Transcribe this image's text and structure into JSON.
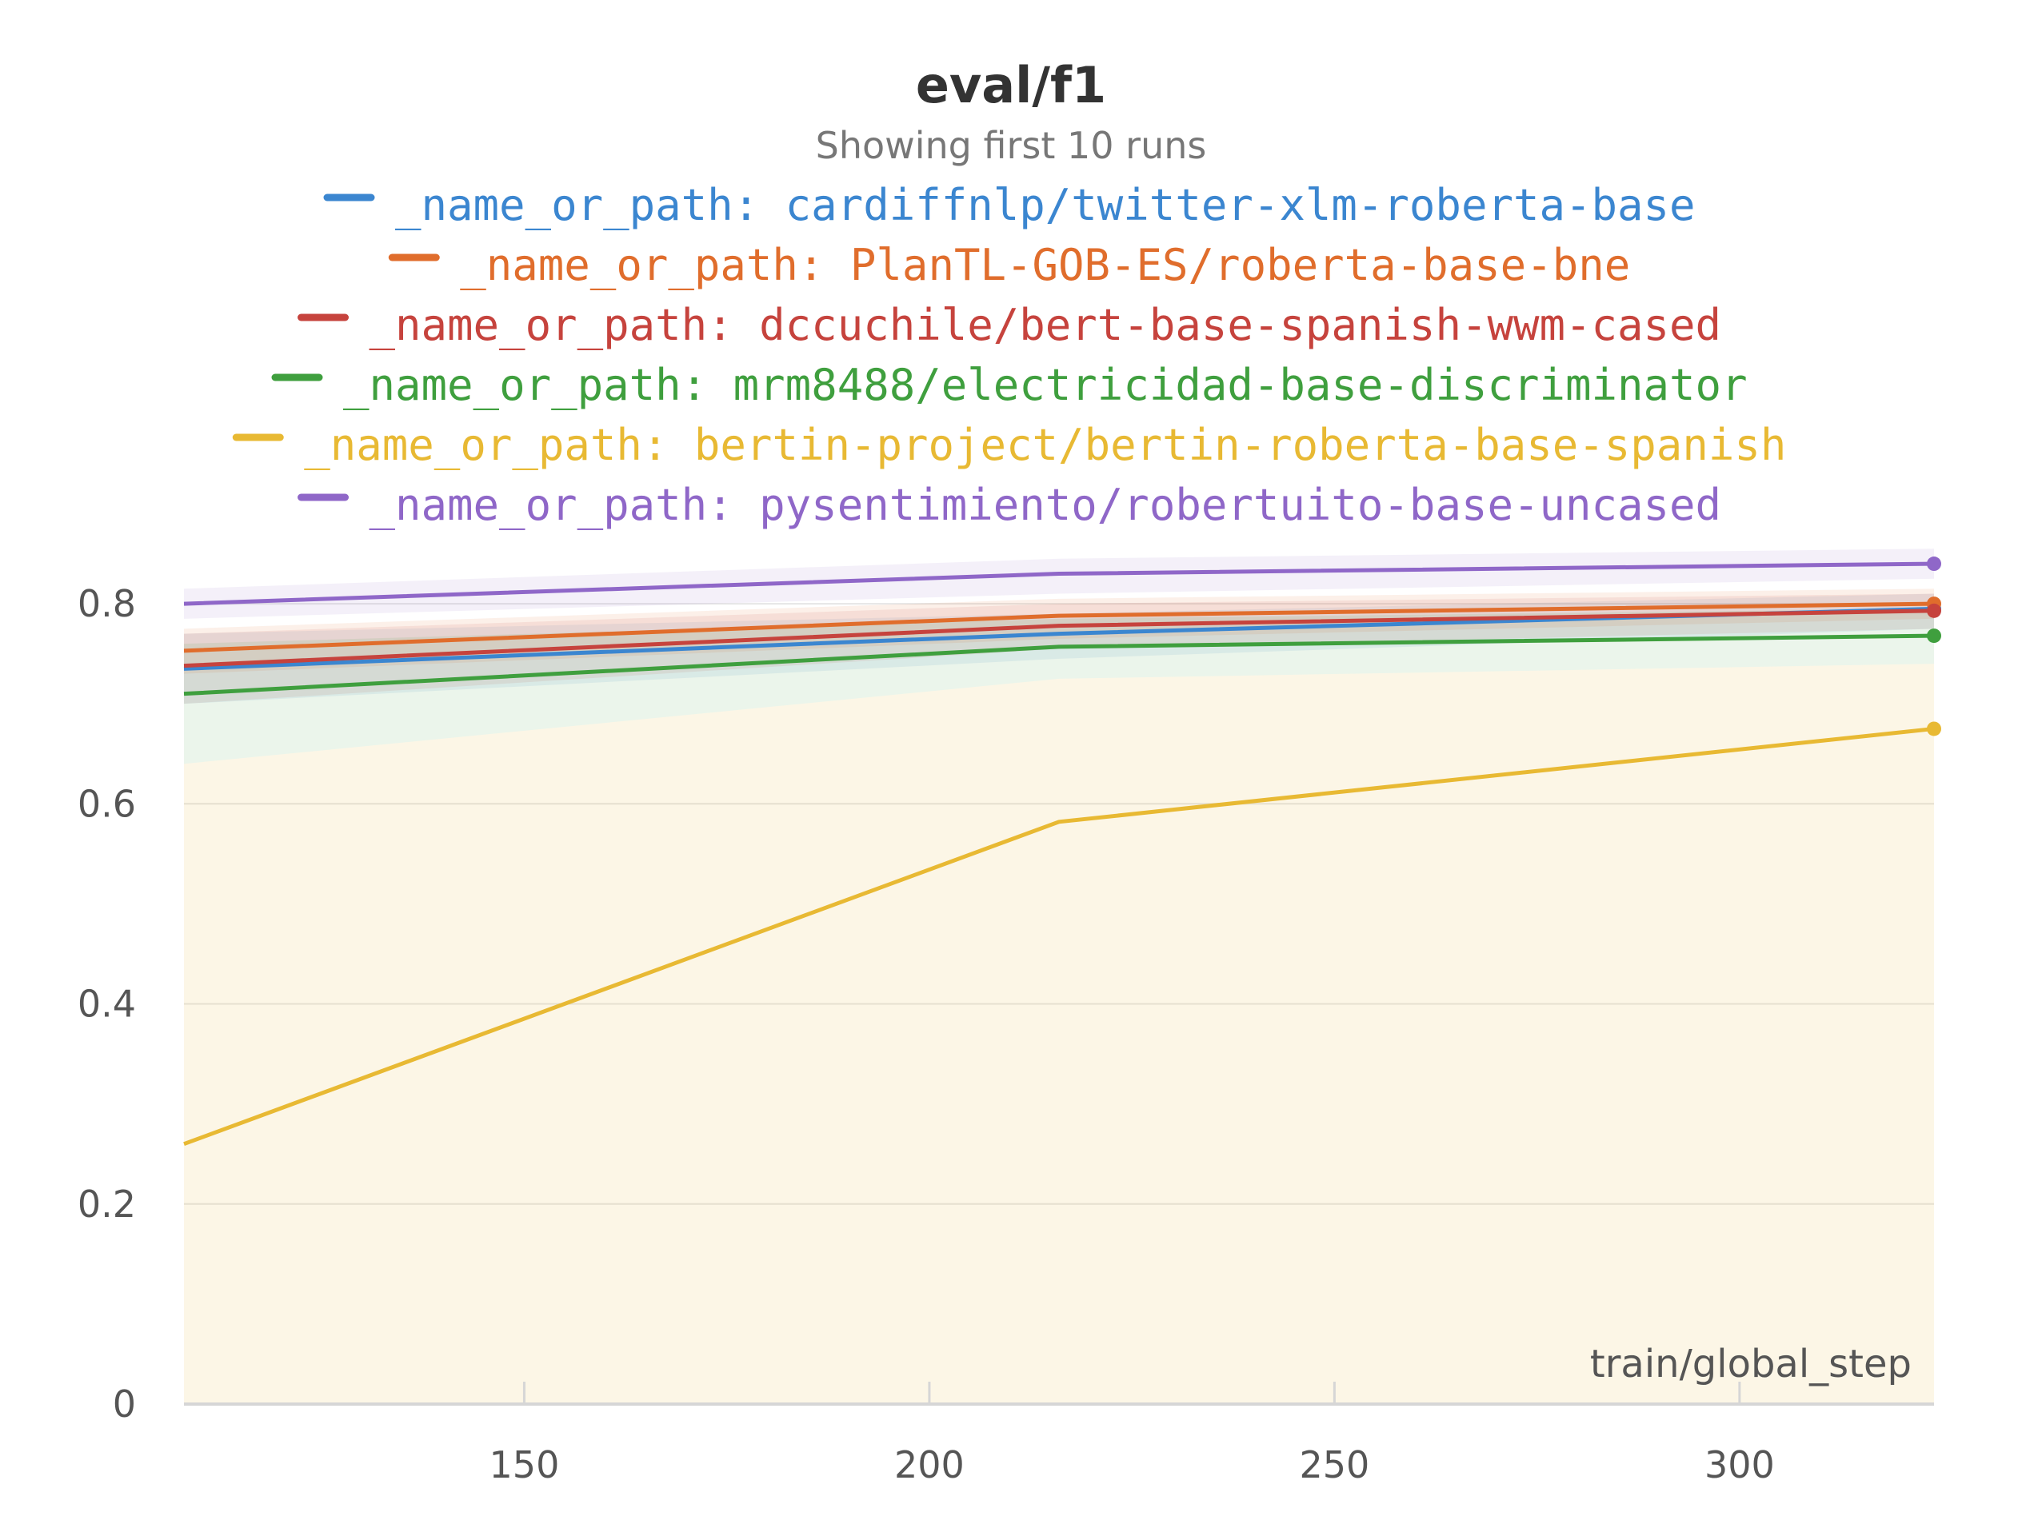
{
  "chart_data": {
    "type": "line",
    "title": "eval/f1",
    "subtitle": "Showing first 10 runs",
    "xlabel": "train/global_step",
    "ylabel": "",
    "xlim": [
      108,
      324
    ],
    "ylim": [
      0,
      0.86
    ],
    "xticks": [
      150,
      200,
      250,
      300
    ],
    "yticks": [
      0,
      0.2,
      0.4,
      0.6,
      0.8
    ],
    "ytick_labels": [
      "0",
      "0.2",
      "0.4",
      "0.6",
      "0.8"
    ],
    "grid": true,
    "legend_position": "top",
    "x": [
      108,
      216,
      324
    ],
    "series": [
      {
        "name": "_name_or_path: cardiffnlp/twitter-xlm-roberta-base",
        "color": "#3b86d0",
        "values": [
          0.735,
          0.77,
          0.795
        ],
        "band": [
          [
            0.7,
            0.77
          ],
          [
            0.745,
            0.79
          ],
          [
            0.775,
            0.81
          ]
        ]
      },
      {
        "name": "_name_or_path: PlanTL-GOB-ES/roberta-base-bne",
        "color": "#e06d2c",
        "values": [
          0.753,
          0.788,
          0.8
        ],
        "band": [
          [
            0.73,
            0.775
          ],
          [
            0.765,
            0.805
          ],
          [
            0.785,
            0.815
          ]
        ]
      },
      {
        "name": "_name_or_path: dccuchile/bert-base-spanish-wwm-cased",
        "color": "#c6433d",
        "values": [
          0.738,
          0.778,
          0.793
        ],
        "band": [
          [
            0.7,
            0.77
          ],
          [
            0.755,
            0.8
          ],
          [
            0.775,
            0.81
          ]
        ]
      },
      {
        "name": "_name_or_path: mrm8488/electricidad-base-discriminator",
        "color": "#3f9f3e",
        "values": [
          0.71,
          0.757,
          0.768
        ],
        "band": [
          [
            0.64,
            0.76
          ],
          [
            0.725,
            0.785
          ],
          [
            0.74,
            0.795
          ]
        ]
      },
      {
        "name": "_name_or_path: bertin-project/bertin-roberta-base-spanish",
        "color": "#e8b933",
        "values": [
          0.26,
          0.582,
          0.675
        ],
        "band": [
          [
            0,
            0.64
          ],
          [
            0,
            0.725
          ],
          [
            0,
            0.74
          ]
        ]
      },
      {
        "name": "_name_or_path: pysentimiento/robertuito-base-uncased",
        "color": "#8f67c8",
        "values": [
          0.8,
          0.83,
          0.84
        ],
        "band": [
          [
            0.785,
            0.815
          ],
          [
            0.81,
            0.845
          ],
          [
            0.825,
            0.855
          ]
        ]
      }
    ]
  }
}
